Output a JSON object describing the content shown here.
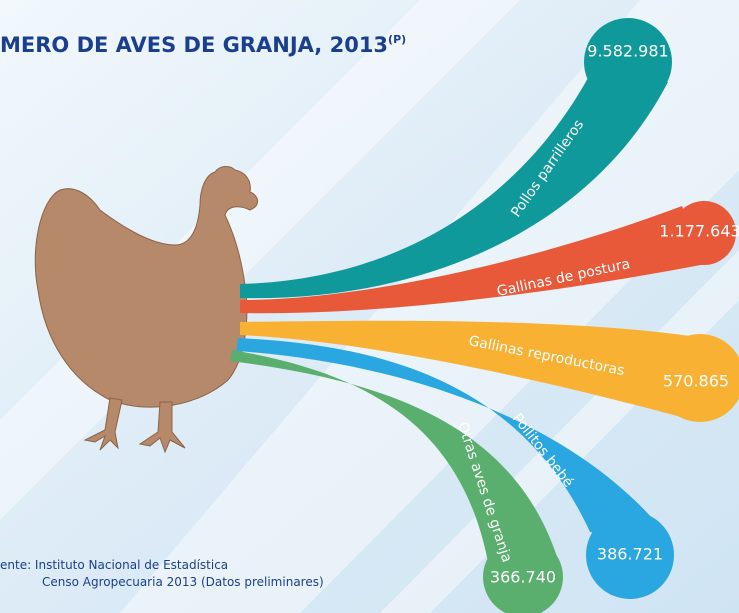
{
  "title": "MERO DE AVES DE GRANJA, 2013",
  "title_note": "(P)",
  "streams": [
    {
      "label": "Pollos parrilleros",
      "value": "9.582.981"
    },
    {
      "label": "Gallinas de postura",
      "value": "1.177.643"
    },
    {
      "label": "Gallinas reproductoras",
      "value": "570.865"
    },
    {
      "label": "Pollitos bebé",
      "value": "386.721"
    },
    {
      "label": "Otras aves de granja",
      "value": "366.740"
    }
  ],
  "source": {
    "line1": "ente: Instituto Nacional de Estadística",
    "line2": "Censo Agropecuaria 2013 (Datos preliminares)"
  }
}
